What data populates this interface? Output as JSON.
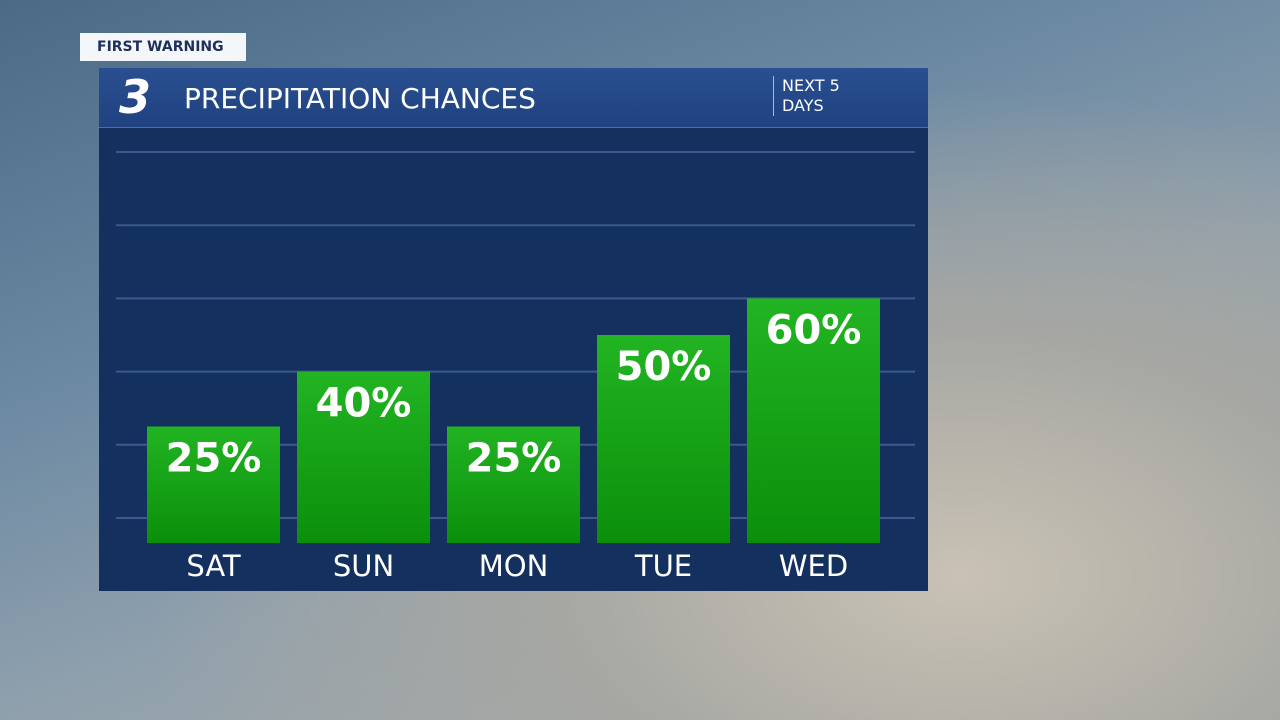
{
  "badge": "FIRST WARNING",
  "logo": "3",
  "chart_data": {
    "type": "bar",
    "title": "PRECIPITATION CHANCES",
    "subtitle": "NEXT 5 DAYS",
    "categories": [
      "SAT",
      "SUN",
      "MON",
      "TUE",
      "WED"
    ],
    "values": [
      25,
      40,
      25,
      50,
      60
    ],
    "value_labels": [
      "25%",
      "40%",
      "25%",
      "50%",
      "60%"
    ],
    "color": "#13a313",
    "ylim": [
      0,
      100
    ],
    "yticks": [
      0,
      20,
      40,
      60,
      80,
      100
    ],
    "grid": true
  }
}
